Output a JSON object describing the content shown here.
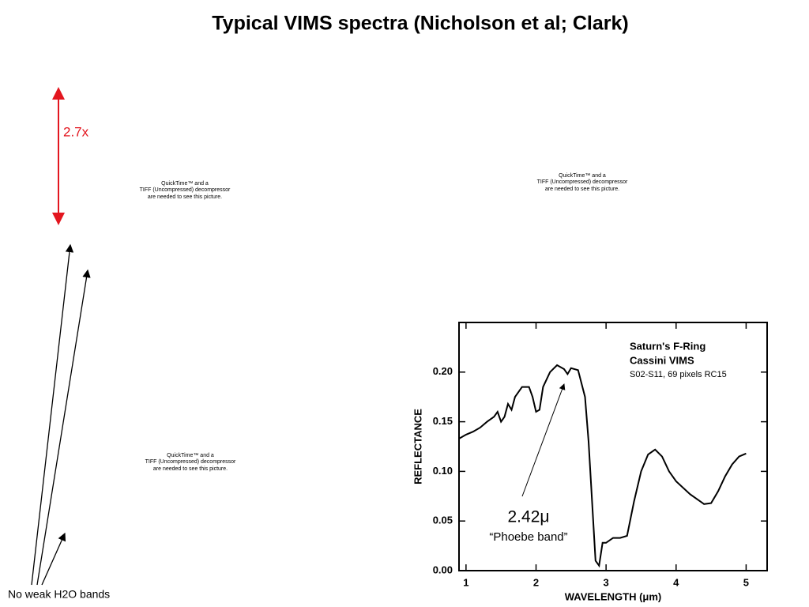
{
  "title": "Typical VIMS spectra (Nicholson et al; Clark)",
  "scale_note": "2.7x",
  "placeholders": [
    [
      "QuickTime™ and a",
      "TIFF (Uncompressed) decompressor",
      "are needed to see this picture."
    ],
    [
      "QuickTime™ and a",
      "TIFF (Uncompressed) decompressor",
      "are needed to see this picture."
    ],
    [
      "QuickTime™ and a",
      "TIFF (Uncompressed) decompressor",
      "are needed to see this picture."
    ]
  ],
  "caption": "No weak H2O bands",
  "chart_data": {
    "type": "line",
    "annotations": [
      "Saturn's F-Ring",
      "Cassini VIMS",
      "S02-S11, 69 pixels RC15"
    ],
    "feature_label": "2.42μ",
    "feature_name": "“Phoebe band”",
    "xlabel": "WAVELENGTH (μm)",
    "ylabel": "REFLECTANCE",
    "x": [
      0.9,
      1.0,
      1.1,
      1.2,
      1.3,
      1.4,
      1.45,
      1.5,
      1.55,
      1.6,
      1.65,
      1.7,
      1.8,
      1.9,
      1.95,
      2.0,
      2.05,
      2.1,
      2.2,
      2.3,
      2.4,
      2.45,
      2.5,
      2.6,
      2.7,
      2.75,
      2.8,
      2.85,
      2.9,
      2.95,
      3.0,
      3.1,
      3.2,
      3.3,
      3.4,
      3.5,
      3.6,
      3.7,
      3.8,
      3.9,
      4.0,
      4.2,
      4.4,
      4.5,
      4.6,
      4.7,
      4.8,
      4.9,
      5.0
    ],
    "series": [
      {
        "color": "#000000",
        "values": [
          0.133,
          0.137,
          0.14,
          0.144,
          0.15,
          0.155,
          0.16,
          0.15,
          0.155,
          0.168,
          0.162,
          0.175,
          0.185,
          0.185,
          0.175,
          0.16,
          0.162,
          0.185,
          0.2,
          0.207,
          0.203,
          0.198,
          0.204,
          0.202,
          0.175,
          0.13,
          0.07,
          0.01,
          0.005,
          0.028,
          0.028,
          0.033,
          0.033,
          0.035,
          0.07,
          0.1,
          0.117,
          0.122,
          0.115,
          0.1,
          0.09,
          0.077,
          0.067,
          0.068,
          0.08,
          0.095,
          0.107,
          0.115,
          0.118
        ]
      }
    ],
    "xlim": [
      0.9,
      5.3
    ],
    "ylim": [
      0,
      0.25
    ],
    "xticks": [
      1,
      2,
      3,
      4,
      5
    ],
    "yticks": [
      {
        "value": 0,
        "label": "0.00"
      },
      {
        "value": 0.05,
        "label": "0.05"
      },
      {
        "value": 0.1,
        "label": "0.10"
      },
      {
        "value": 0.15,
        "label": "0.15"
      },
      {
        "value": 0.2,
        "label": "0.20"
      }
    ]
  }
}
